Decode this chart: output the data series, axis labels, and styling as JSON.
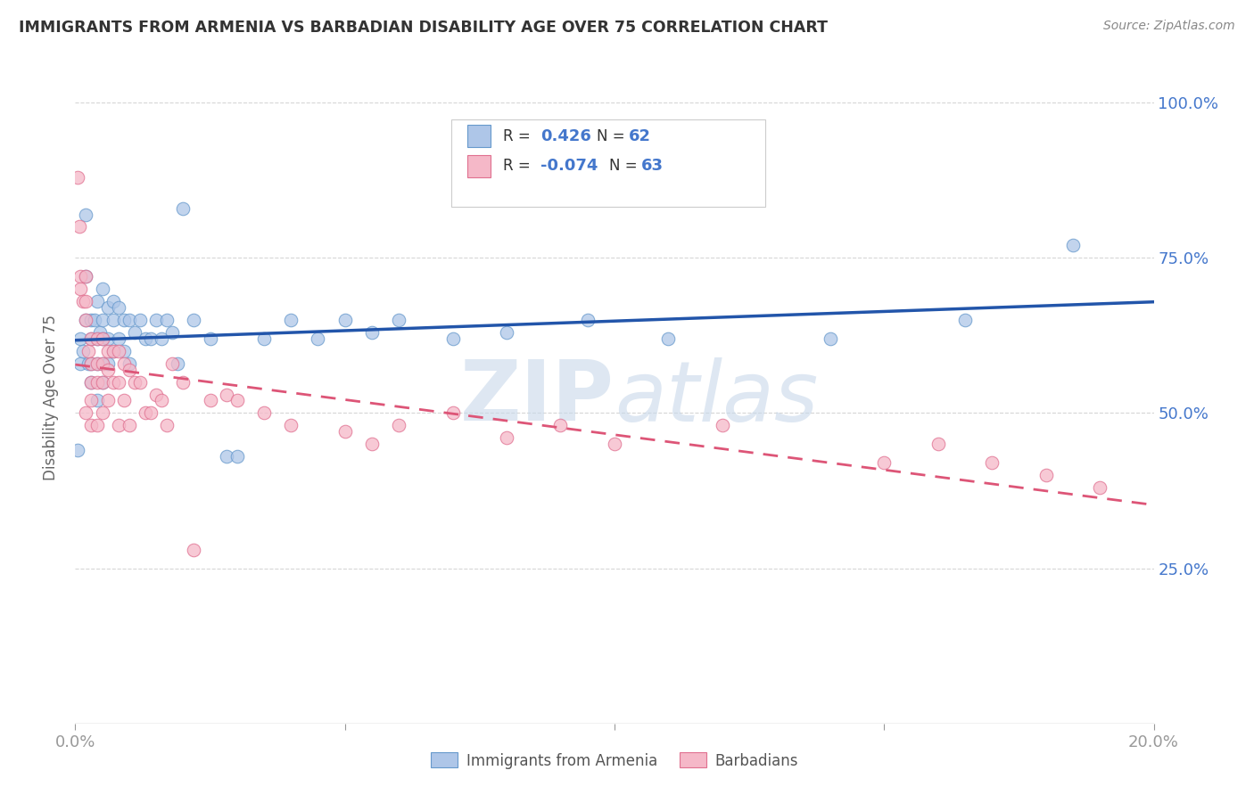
{
  "title": "IMMIGRANTS FROM ARMENIA VS BARBADIAN DISABILITY AGE OVER 75 CORRELATION CHART",
  "source": "Source: ZipAtlas.com",
  "ylabel": "Disability Age Over 75",
  "legend_labels": [
    "Immigrants from Armenia",
    "Barbadians"
  ],
  "r_armenia": "0.426",
  "n_armenia": "62",
  "r_barbadian": "-0.074",
  "n_barbadian": "63",
  "armenia_color": "#aec6e8",
  "armenia_edge_color": "#6699cc",
  "barbadian_color": "#f5b8c8",
  "barbadian_edge_color": "#e07090",
  "armenia_line_color": "#2255aa",
  "barbadian_line_color": "#dd5577",
  "watermark_color": "#c8d8ea",
  "text_color_blue": "#4477cc",
  "text_color_dark": "#333333",
  "grid_color": "#cccccc",
  "background_color": "#ffffff",
  "armenia_scatter_x": [
    0.0005,
    0.001,
    0.001,
    0.0015,
    0.002,
    0.002,
    0.002,
    0.0025,
    0.003,
    0.003,
    0.003,
    0.003,
    0.0035,
    0.004,
    0.004,
    0.004,
    0.004,
    0.0045,
    0.005,
    0.005,
    0.005,
    0.005,
    0.005,
    0.006,
    0.006,
    0.006,
    0.007,
    0.007,
    0.007,
    0.008,
    0.008,
    0.009,
    0.009,
    0.01,
    0.01,
    0.011,
    0.012,
    0.013,
    0.014,
    0.015,
    0.016,
    0.017,
    0.018,
    0.019,
    0.02,
    0.022,
    0.025,
    0.028,
    0.03,
    0.035,
    0.04,
    0.045,
    0.05,
    0.055,
    0.06,
    0.07,
    0.08,
    0.095,
    0.11,
    0.14,
    0.165,
    0.185
  ],
  "armenia_scatter_y": [
    0.44,
    0.62,
    0.58,
    0.6,
    0.82,
    0.72,
    0.65,
    0.58,
    0.65,
    0.62,
    0.58,
    0.55,
    0.65,
    0.68,
    0.62,
    0.58,
    0.52,
    0.63,
    0.7,
    0.65,
    0.62,
    0.58,
    0.55,
    0.67,
    0.62,
    0.58,
    0.68,
    0.65,
    0.6,
    0.67,
    0.62,
    0.65,
    0.6,
    0.65,
    0.58,
    0.63,
    0.65,
    0.62,
    0.62,
    0.65,
    0.62,
    0.65,
    0.63,
    0.58,
    0.83,
    0.65,
    0.62,
    0.43,
    0.43,
    0.62,
    0.65,
    0.62,
    0.65,
    0.63,
    0.65,
    0.62,
    0.63,
    0.65,
    0.62,
    0.62,
    0.65,
    0.77
  ],
  "barbadian_scatter_x": [
    0.0005,
    0.0008,
    0.001,
    0.001,
    0.0015,
    0.002,
    0.002,
    0.002,
    0.002,
    0.0025,
    0.003,
    0.003,
    0.003,
    0.003,
    0.003,
    0.004,
    0.004,
    0.004,
    0.004,
    0.005,
    0.005,
    0.005,
    0.005,
    0.006,
    0.006,
    0.006,
    0.007,
    0.007,
    0.008,
    0.008,
    0.008,
    0.009,
    0.009,
    0.01,
    0.01,
    0.011,
    0.012,
    0.013,
    0.014,
    0.015,
    0.016,
    0.017,
    0.018,
    0.02,
    0.022,
    0.025,
    0.028,
    0.03,
    0.035,
    0.04,
    0.05,
    0.055,
    0.06,
    0.07,
    0.08,
    0.09,
    0.1,
    0.12,
    0.15,
    0.16,
    0.17,
    0.18,
    0.19
  ],
  "barbadian_scatter_y": [
    0.88,
    0.8,
    0.72,
    0.7,
    0.68,
    0.72,
    0.68,
    0.65,
    0.5,
    0.6,
    0.62,
    0.58,
    0.55,
    0.52,
    0.48,
    0.62,
    0.58,
    0.55,
    0.48,
    0.62,
    0.58,
    0.55,
    0.5,
    0.6,
    0.57,
    0.52,
    0.6,
    0.55,
    0.6,
    0.55,
    0.48,
    0.58,
    0.52,
    0.57,
    0.48,
    0.55,
    0.55,
    0.5,
    0.5,
    0.53,
    0.52,
    0.48,
    0.58,
    0.55,
    0.28,
    0.52,
    0.53,
    0.52,
    0.5,
    0.48,
    0.47,
    0.45,
    0.48,
    0.5,
    0.46,
    0.48,
    0.45,
    0.48,
    0.42,
    0.45,
    0.42,
    0.4,
    0.38
  ],
  "xlim": [
    0.0,
    0.2
  ],
  "ylim": [
    0.0,
    1.05
  ],
  "yticks": [
    0.25,
    0.5,
    0.75,
    1.0
  ],
  "ytick_labels": [
    "25.0%",
    "50.0%",
    "75.0%",
    "100.0%"
  ],
  "xtick_positions": [
    0.0,
    0.05,
    0.1,
    0.15,
    0.2
  ],
  "xtick_labels": [
    "0.0%",
    "",
    "",
    "",
    "20.0%"
  ]
}
